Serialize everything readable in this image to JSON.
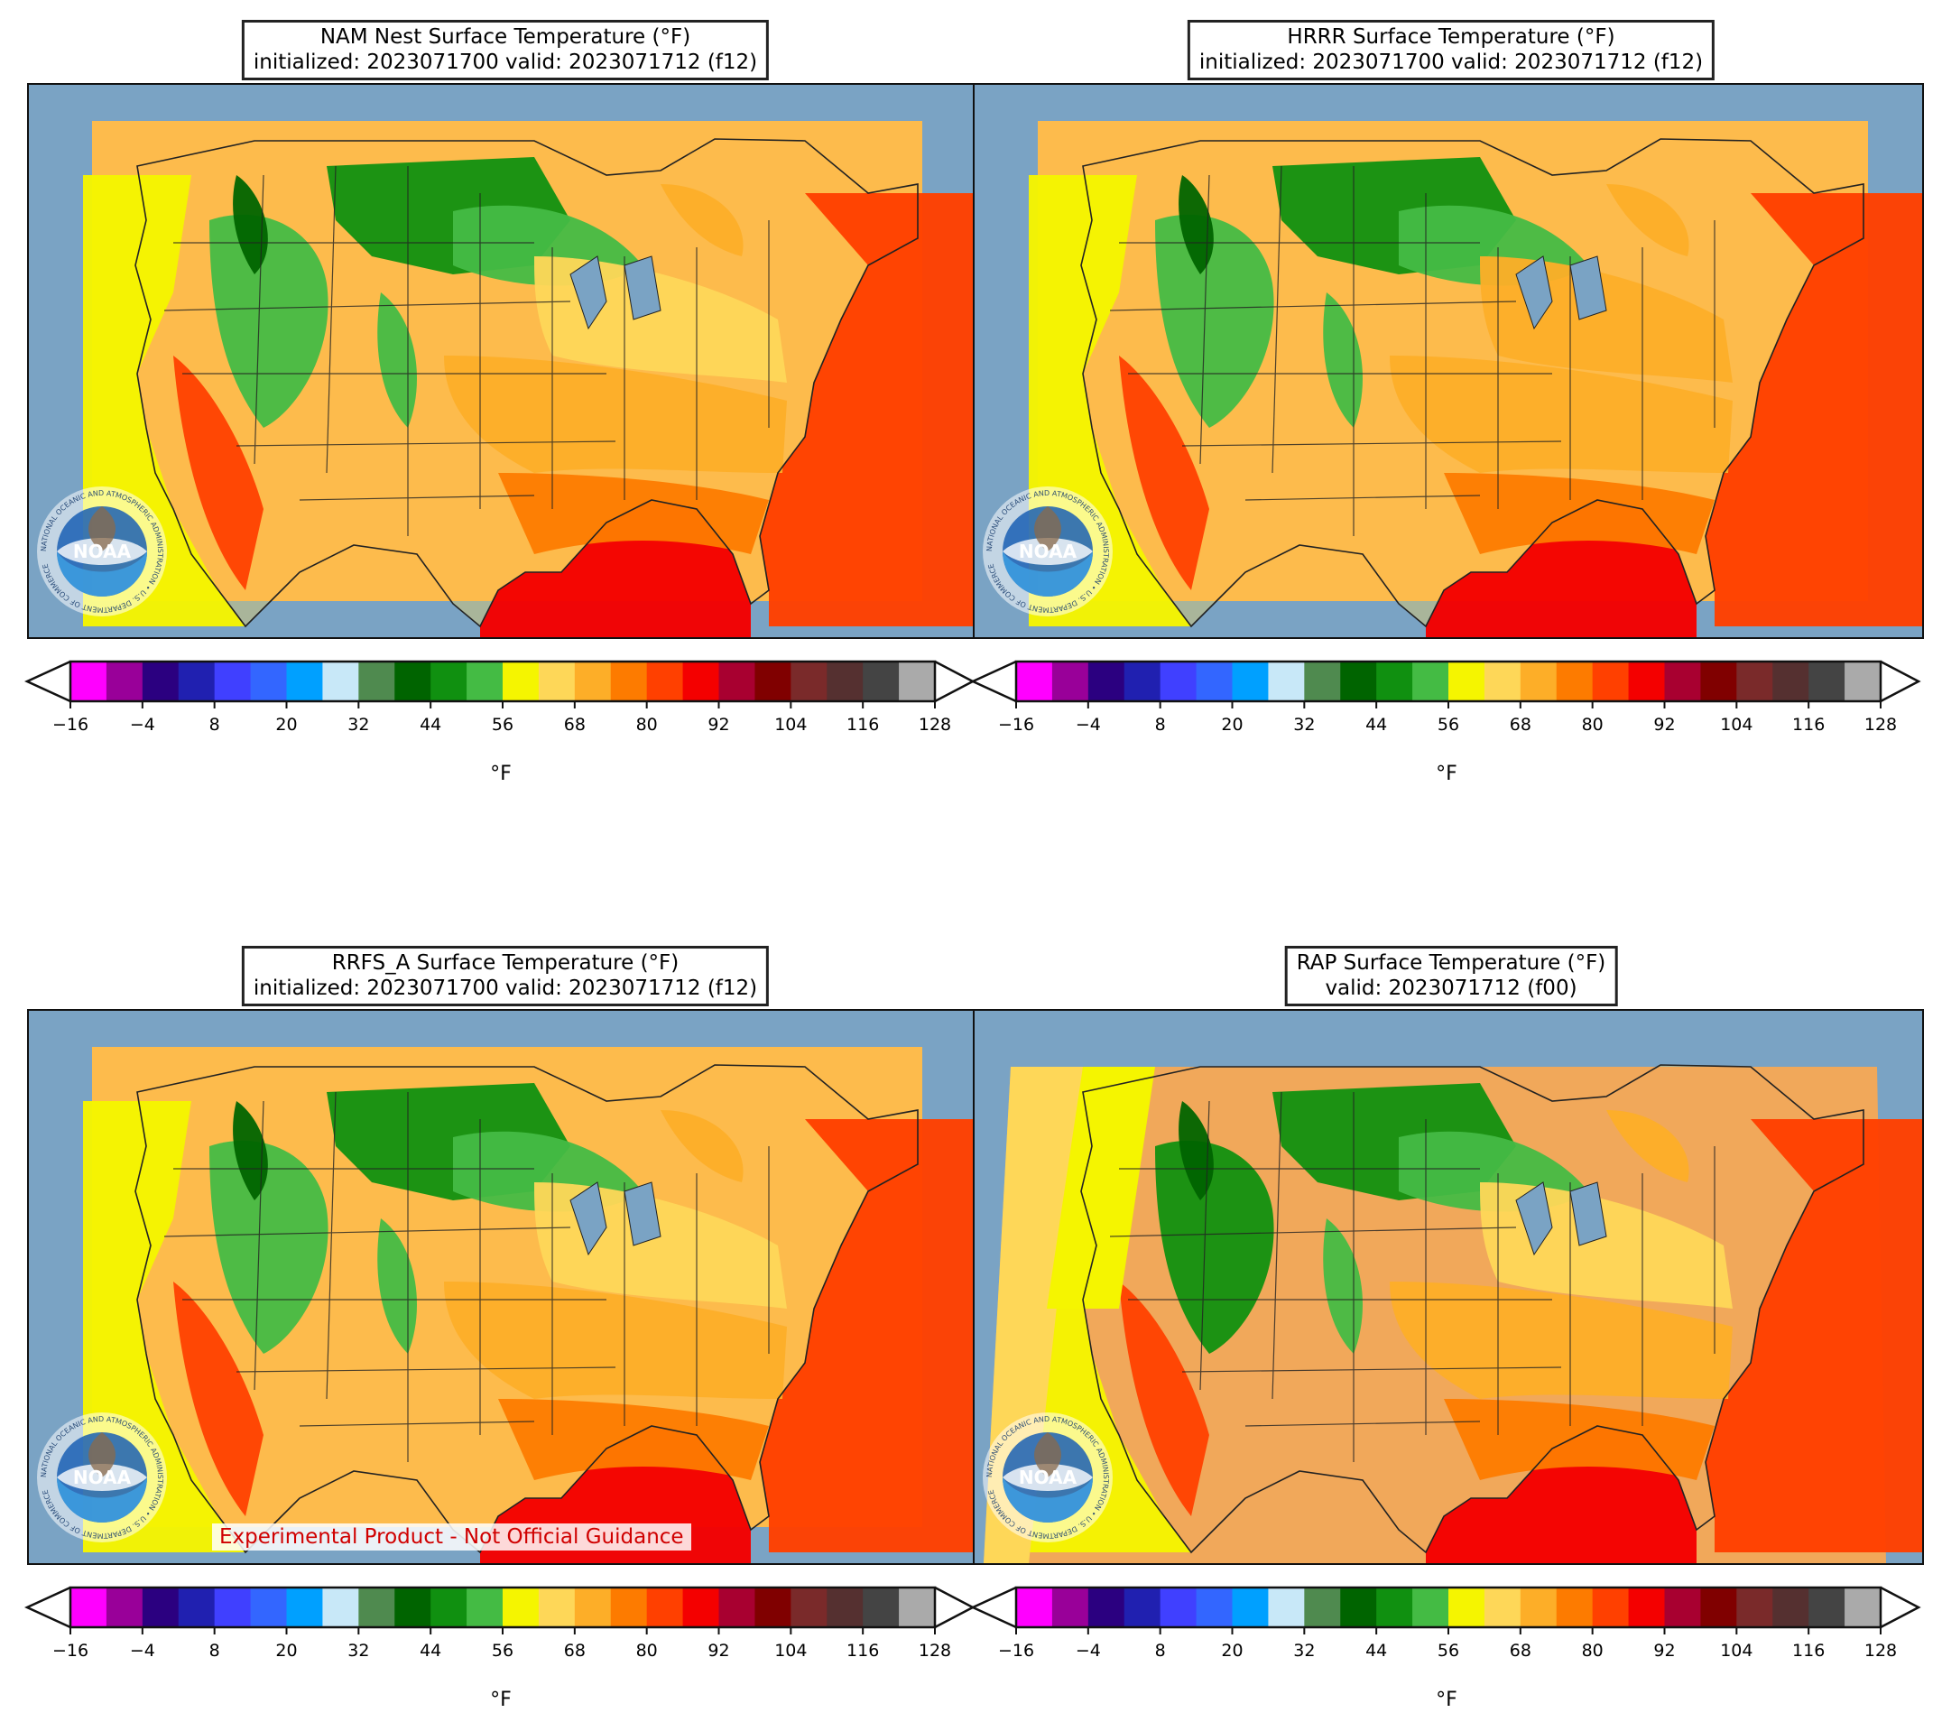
{
  "panels": [
    {
      "id": "nam",
      "title_line1": "NAM Nest Surface Temperature (°F)",
      "title_line2": "initialized: 2023071700 valid: 2023071712 (f12)"
    },
    {
      "id": "hrrr",
      "title_line1": "HRRR Surface Temperature (°F)",
      "title_line2": "initialized: 2023071700 valid: 2023071712 (f12)"
    },
    {
      "id": "rrfs",
      "title_line1": "RRFS_A Surface Temperature (°F)",
      "title_line2": "initialized: 2023071700 valid: 2023071712 (f12)"
    },
    {
      "id": "rap",
      "title_line1": "RAP Surface Temperature (°F)",
      "title_line2": "valid: 2023071712 (f00)"
    }
  ],
  "colorbar": {
    "unit": "°F",
    "ticks": [
      "−16",
      "−4",
      "8",
      "20",
      "32",
      "44",
      "56",
      "68",
      "80",
      "92",
      "104",
      "116",
      "128"
    ],
    "colors": [
      "#ff00ff",
      "#990099",
      "#2b0080",
      "#2020b0",
      "#4040ff",
      "#3366ff",
      "#00a0ff",
      "#c8e8f8",
      "#4f8a4f",
      "#006400",
      "#109010",
      "#44bb44",
      "#f5f500",
      "#fed758",
      "#fdae28",
      "#fd7b00",
      "#ff4000",
      "#f40000",
      "#a80030",
      "#800000",
      "#7a2a2a",
      "#553030",
      "#444444",
      "#aaaaaa"
    ]
  },
  "disclaimer": "Experimental Product - Not Official Guidance",
  "logo": {
    "text": "NOAA",
    "ring_text": "NATIONAL OCEANIC AND ATMOSPHERIC ADMINISTRATION • U.S. DEPARTMENT OF COMMERCE"
  },
  "colors": {
    "ocean": "#7aa3c4",
    "land_bg": "#a9b59a",
    "border": "#111111"
  }
}
